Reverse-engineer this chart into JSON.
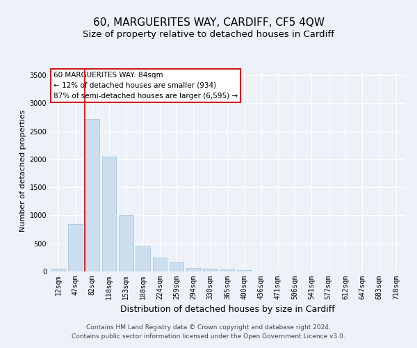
{
  "title": "60, MARGUERITES WAY, CARDIFF, CF5 4QW",
  "subtitle": "Size of property relative to detached houses in Cardiff",
  "xlabel": "Distribution of detached houses by size in Cardiff",
  "ylabel": "Number of detached properties",
  "categories": [
    "12sqm",
    "47sqm",
    "82sqm",
    "118sqm",
    "153sqm",
    "188sqm",
    "224sqm",
    "259sqm",
    "294sqm",
    "330sqm",
    "365sqm",
    "400sqm",
    "436sqm",
    "471sqm",
    "506sqm",
    "541sqm",
    "577sqm",
    "612sqm",
    "647sqm",
    "683sqm",
    "718sqm"
  ],
  "values": [
    55,
    850,
    2720,
    2050,
    1010,
    450,
    250,
    160,
    60,
    55,
    35,
    25,
    0,
    0,
    0,
    0,
    0,
    0,
    0,
    0,
    0
  ],
  "bar_color": "#ccdded",
  "bar_edge_color": "#aac8e0",
  "vline_color": "#cc0000",
  "vline_x_index": 2,
  "annotation_title": "60 MARGUERITES WAY: 84sqm",
  "annotation_line2": "← 12% of detached houses are smaller (934)",
  "annotation_line3": "87% of semi-detached houses are larger (6,595) →",
  "annotation_box_color": "#ffffff",
  "annotation_box_edge": "#cc0000",
  "ylim": [
    0,
    3600
  ],
  "yticks": [
    0,
    500,
    1000,
    1500,
    2000,
    2500,
    3000,
    3500
  ],
  "footer1": "Contains HM Land Registry data © Crown copyright and database right 2024.",
  "footer2": "Contains public sector information licensed under the Open Government Licence v3.0.",
  "background_color": "#edf2f9",
  "plot_background": "#edf2f9",
  "title_fontsize": 11,
  "subtitle_fontsize": 9.5,
  "xlabel_fontsize": 9,
  "ylabel_fontsize": 8,
  "tick_fontsize": 7,
  "footer_fontsize": 6.5
}
